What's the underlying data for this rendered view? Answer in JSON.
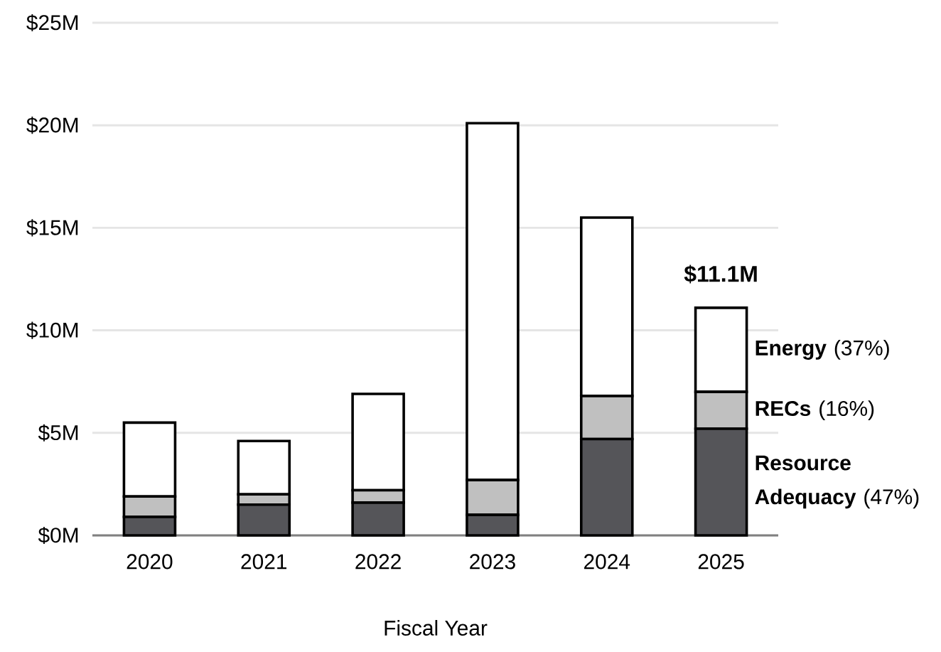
{
  "chart_data": {
    "type": "bar",
    "stacked": true,
    "xlabel": "Fiscal Year",
    "categories": [
      "2020",
      "2021",
      "2022",
      "2023",
      "2024",
      "2025"
    ],
    "ylim": [
      0,
      25
    ],
    "yticks": [
      {
        "value": 0,
        "label": "$0M"
      },
      {
        "value": 5,
        "label": "$5M"
      },
      {
        "value": 10,
        "label": "$10M"
      },
      {
        "value": 15,
        "label": "$15M"
      },
      {
        "value": 20,
        "label": "$20M"
      },
      {
        "value": 25,
        "label": "$25M"
      }
    ],
    "grid": "y",
    "series": [
      {
        "name": "**Resource Adequacy** (47%)",
        "color": "#555559",
        "values": [
          0.9,
          1.5,
          1.6,
          1.0,
          4.7,
          5.2
        ]
      },
      {
        "name": "**RECs** (16%)",
        "color": "#c0c0c0",
        "values": [
          1.0,
          0.5,
          0.6,
          1.7,
          2.1,
          1.8
        ]
      },
      {
        "name": "**Energy** (37%)",
        "color": "#ffffff",
        "values": [
          3.6,
          2.6,
          4.7,
          17.4,
          8.7,
          4.1
        ]
      }
    ],
    "totals": [
      null,
      null,
      null,
      null,
      null,
      "$11.1M"
    ]
  }
}
